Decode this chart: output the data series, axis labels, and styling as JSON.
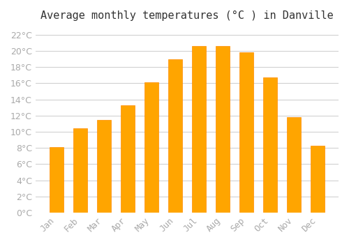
{
  "title": "Average monthly temperatures (°C ) in Danville",
  "months": [
    "Jan",
    "Feb",
    "Mar",
    "Apr",
    "May",
    "Jun",
    "Jul",
    "Aug",
    "Sep",
    "Oct",
    "Nov",
    "Dec"
  ],
  "values": [
    8.1,
    10.4,
    11.5,
    13.3,
    16.1,
    19.0,
    20.6,
    20.6,
    19.8,
    16.7,
    11.8,
    8.3
  ],
  "bar_color": "#FFA500",
  "bar_edge_color": "#FF8C00",
  "background_color": "#ffffff",
  "grid_color": "#cccccc",
  "ylim": [
    0,
    23
  ],
  "yticks": [
    0,
    2,
    4,
    6,
    8,
    10,
    12,
    14,
    16,
    18,
    20,
    22
  ],
  "title_fontsize": 11,
  "tick_fontsize": 9,
  "tick_color": "#aaaaaa",
  "bar_width": 0.6
}
